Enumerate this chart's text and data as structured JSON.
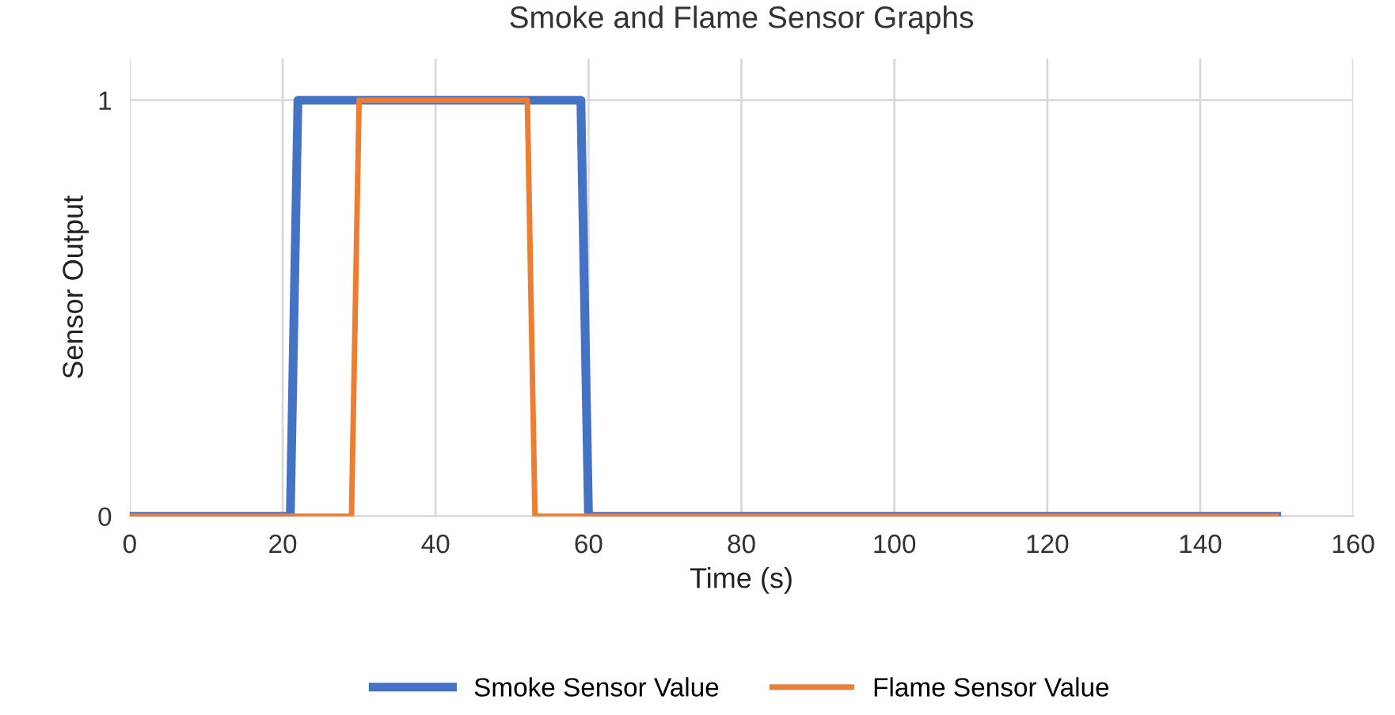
{
  "chart_data": {
    "type": "line",
    "title": "Smoke and Flame Sensor Graphs",
    "xlabel": "Time (s)",
    "ylabel": "Sensor Output",
    "series": [
      {
        "name": "Smoke Sensor Value",
        "color": "#4472c4",
        "x": [
          0,
          21,
          22,
          59,
          60,
          150
        ],
        "values": [
          0,
          0,
          1,
          1,
          0,
          0
        ]
      },
      {
        "name": "Flame Sensor Value",
        "color": "#ed7d31",
        "x": [
          0,
          29,
          30,
          52,
          53,
          150
        ],
        "values": [
          0,
          0,
          1,
          1,
          0,
          0
        ]
      }
    ],
    "xlim": [
      0,
      160
    ],
    "xticks": [
      0,
      20,
      40,
      60,
      80,
      100,
      120,
      140,
      160
    ],
    "ylim": [
      0,
      1.1
    ],
    "yticks": [
      0,
      1
    ],
    "grid": true,
    "legend": "bottom",
    "marker": "none",
    "line_style": "solid"
  }
}
